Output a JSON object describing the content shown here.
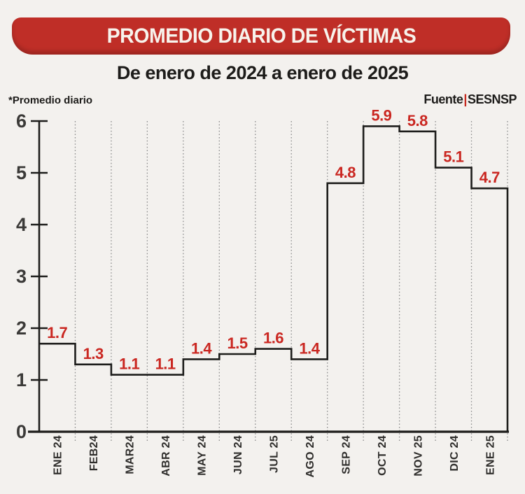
{
  "header": {
    "title": "PROMEDIO DIARIO DE VÍCTIMAS",
    "subtitle": "De enero de 2024 a enero de 2025",
    "note": "*Promedio diario",
    "source_label": "Fuente",
    "source_separator": "|",
    "source_name": "SESNSP"
  },
  "colors": {
    "banner_red": "#bf2e27",
    "value_label_red": "#ca2721",
    "line_black": "#1d1d1b",
    "grid_gray": "#8d8d8d"
  },
  "chart_data": {
    "type": "line",
    "subtype": "step",
    "title": "PROMEDIO DIARIO DE VÍCTIMAS",
    "subtitle": "De enero de 2024 a enero de 2025",
    "xlabel": "",
    "ylabel": "*Promedio diario",
    "source": "Fuente|SESNSP",
    "categories": [
      "ENE 24",
      "FEB24",
      "MAR24",
      "ABR 24",
      "MAY 24",
      "JUN 24",
      "JUL 25",
      "AGO 24",
      "SEP 24",
      "OCT 24",
      "NOV 25",
      "DIC 24",
      "ENE 25"
    ],
    "values": [
      1.7,
      1.3,
      1.1,
      1.1,
      1.4,
      1.5,
      1.6,
      1.4,
      4.8,
      5.9,
      5.8,
      5.1,
      4.7
    ],
    "ylim": [
      0,
      6
    ],
    "yticks": [
      0,
      1,
      2,
      3,
      4,
      5,
      6
    ],
    "grid": "vertical-dotted",
    "legend_position": "none",
    "data_labels": true
  }
}
